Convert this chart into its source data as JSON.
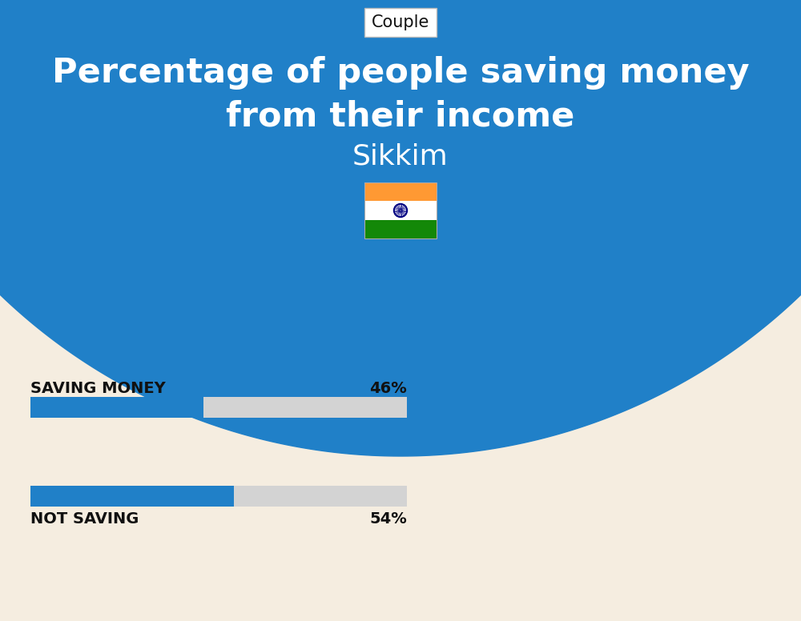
{
  "title_line1": "Percentage of people saving money",
  "title_line2": "from their income",
  "subtitle": "Sikkim",
  "tag_label": "Couple",
  "bar1_label": "SAVING MONEY",
  "bar1_value": 46,
  "bar1_pct": "46%",
  "bar2_label": "NOT SAVING",
  "bar2_value": 54,
  "bar2_pct": "54%",
  "blue_color": "#2080C8",
  "bar_fill_color": "#2080C8",
  "bar_bg_color": "#D3D3D3",
  "bg_top_color": "#2080C8",
  "bg_bottom_color": "#F5EDE0",
  "title_color": "#FFFFFF",
  "subtitle_color": "#FFFFFF",
  "label_color": "#111111",
  "tag_bg": "#FFFFFF",
  "tag_color": "#111111",
  "fig_width": 10.0,
  "fig_height": 7.76,
  "dpi": 100
}
